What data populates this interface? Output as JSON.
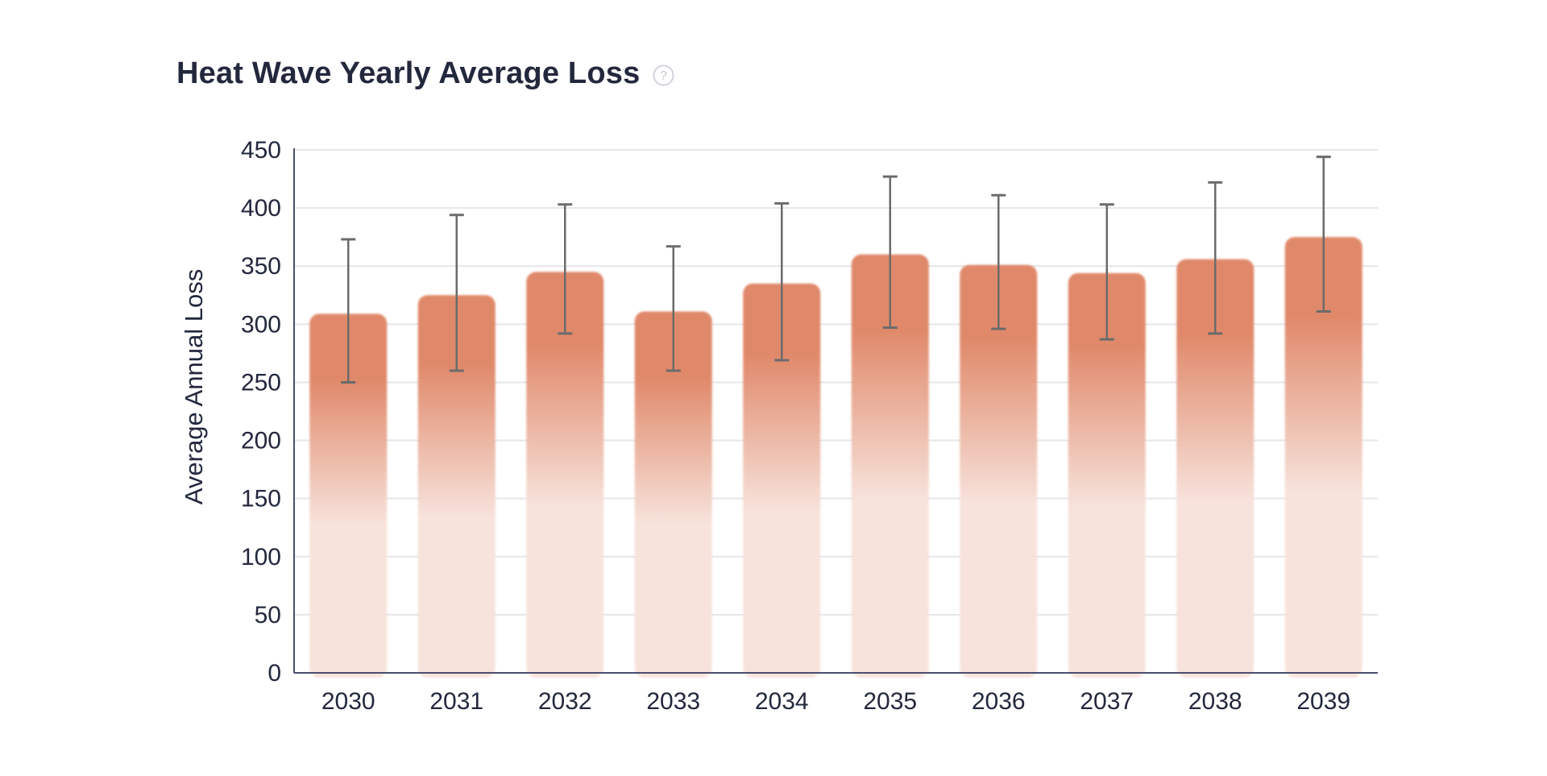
{
  "header": {
    "title": "Heat Wave Yearly Average Loss",
    "help_icon": "question-circle-icon"
  },
  "colors": {
    "bar": "#e0896a",
    "bar_fade": "#f7e3dc",
    "error_bar": "#6b6b6b",
    "grid": "#e6e6ea",
    "axis": "#4a4f6e",
    "text": "#23283d"
  },
  "chart_data": {
    "type": "bar",
    "title": "Heat Wave Yearly Average Loss",
    "xlabel": "",
    "ylabel": "Average Annual Loss",
    "ylim": [
      0,
      450
    ],
    "y_ticks": [
      "0",
      "50",
      "100",
      "150",
      "200",
      "250",
      "300",
      "350",
      "400",
      "450"
    ],
    "y_tick_values": [
      0,
      50,
      100,
      150,
      200,
      250,
      300,
      350,
      400,
      450
    ],
    "grid": true,
    "categories": [
      "2030",
      "2031",
      "2032",
      "2033",
      "2034",
      "2035",
      "2036",
      "2037",
      "2038",
      "2039"
    ],
    "values": [
      309,
      325,
      345,
      311,
      335,
      360,
      351,
      344,
      356,
      375
    ],
    "error_low": [
      250,
      260,
      292,
      260,
      269,
      297,
      296,
      287,
      292,
      311
    ],
    "error_high": [
      373,
      394,
      403,
      367,
      404,
      427,
      411,
      403,
      422,
      444
    ]
  }
}
